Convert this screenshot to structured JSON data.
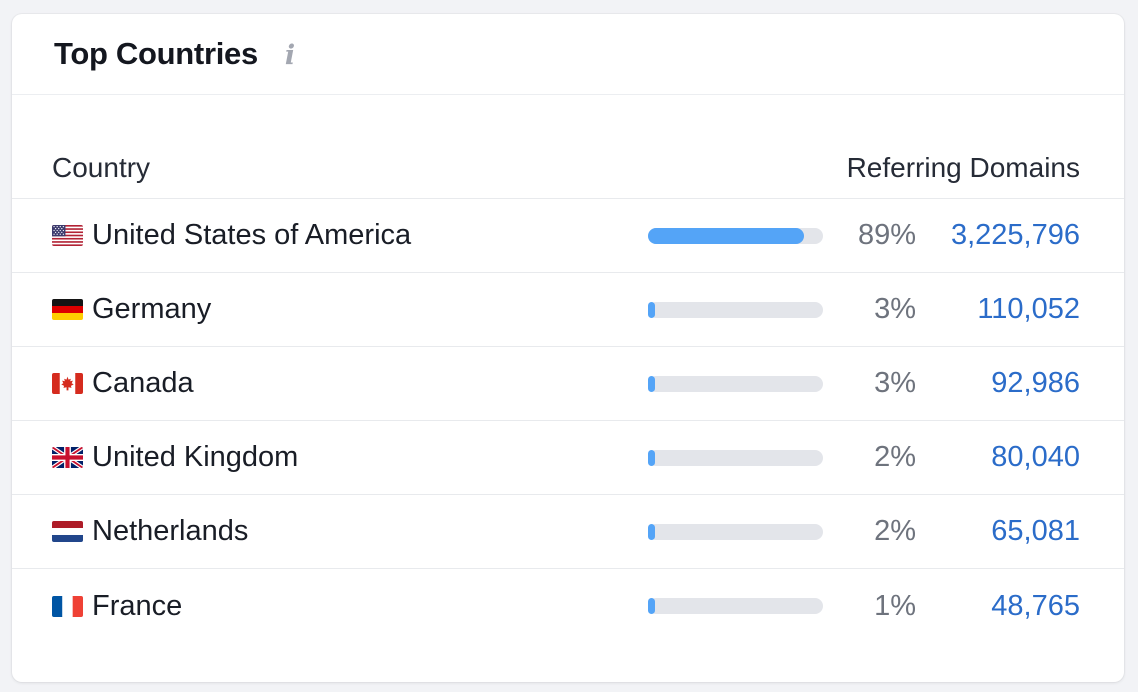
{
  "card": {
    "title": "Top Countries",
    "icons": {
      "info": "i"
    }
  },
  "table": {
    "columns": {
      "country": "Country",
      "referring_domains": "Referring Domains"
    },
    "rows": [
      {
        "country": "United States of America",
        "flag": "united-states",
        "percent": 89,
        "percent_label": "89%",
        "value": "3,225,796"
      },
      {
        "country": "Germany",
        "flag": "germany",
        "percent": 3,
        "percent_label": "3%",
        "value": "110,052"
      },
      {
        "country": "Canada",
        "flag": "canada",
        "percent": 3,
        "percent_label": "3%",
        "value": "92,986"
      },
      {
        "country": "United Kingdom",
        "flag": "united-kingdom",
        "percent": 2,
        "percent_label": "2%",
        "value": "80,040"
      },
      {
        "country": "Netherlands",
        "flag": "netherlands",
        "percent": 2,
        "percent_label": "2%",
        "value": "65,081"
      },
      {
        "country": "France",
        "flag": "france",
        "percent": 1,
        "percent_label": "1%",
        "value": "48,765"
      }
    ]
  },
  "colors": {
    "bar_fill": "#54a4f7",
    "bar_track": "#e3e5ea",
    "value_link": "#2b6cc9",
    "percent_text": "#6e737d",
    "divider": "#e8eaed",
    "page_background": "#f2f3f6",
    "card_background": "#ffffff"
  }
}
